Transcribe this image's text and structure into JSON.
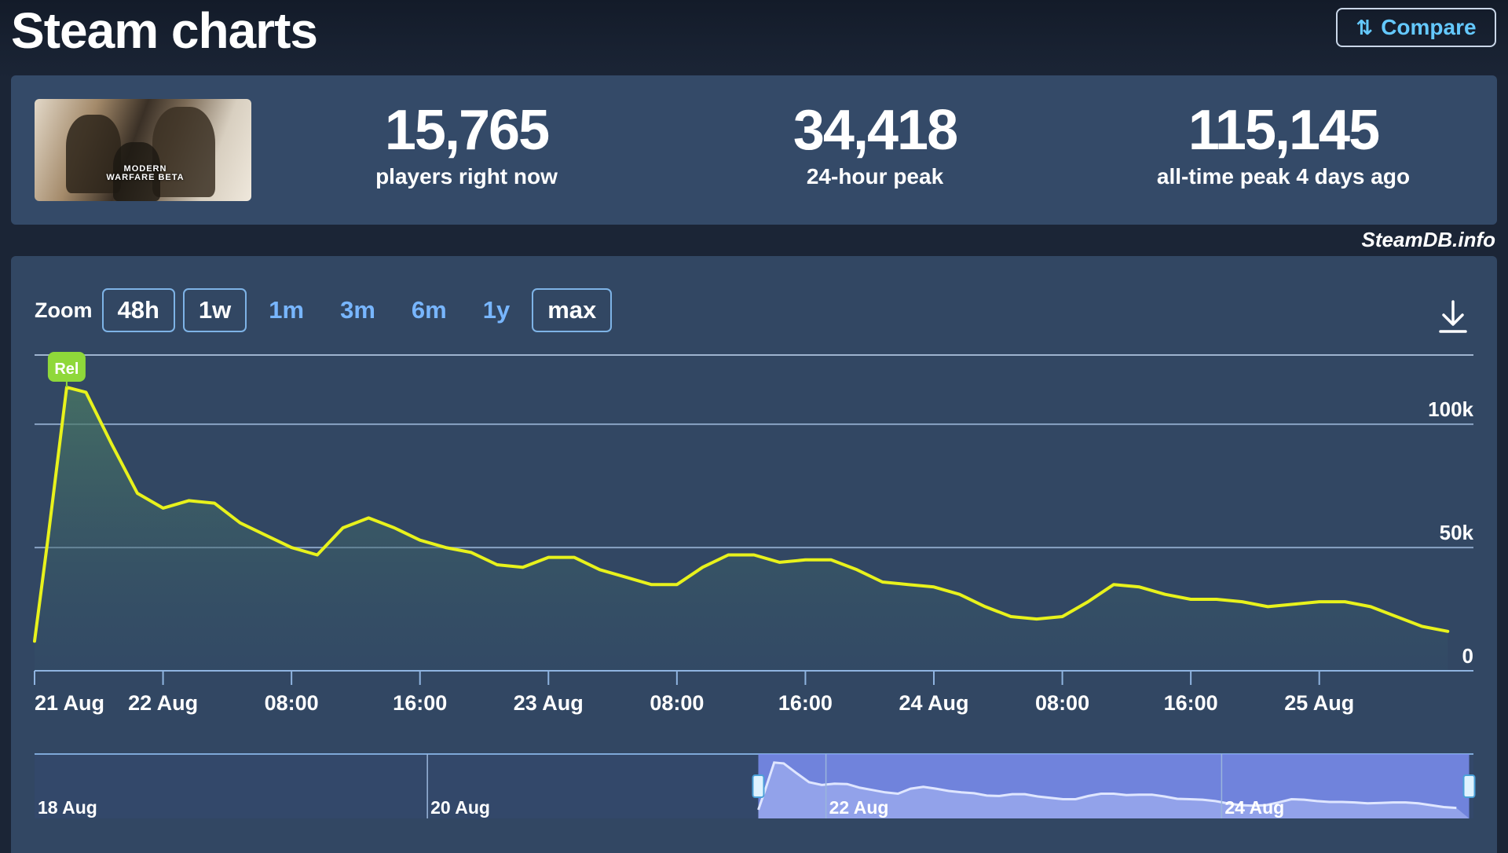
{
  "header": {
    "title": "Steam charts",
    "compare_label": "Compare",
    "compare_icon": "sort-numeric-icon"
  },
  "stats": {
    "thumbnail_logo": "MODERN WARFARE BETA",
    "current": {
      "value": "15,765",
      "label": "players right now"
    },
    "peak24": {
      "value": "34,418",
      "label": "24-hour peak"
    },
    "alltime": {
      "value": "115,145",
      "label": "all-time peak 4 days ago"
    }
  },
  "credit": "SteamDB.info",
  "zoom": {
    "label": "Zoom",
    "options": [
      {
        "label": "48h",
        "active": true
      },
      {
        "label": "1w",
        "active": true
      },
      {
        "label": "1m",
        "active": false
      },
      {
        "label": "3m",
        "active": false
      },
      {
        "label": "6m",
        "active": false
      },
      {
        "label": "1y",
        "active": false
      },
      {
        "label": "max",
        "active": true
      }
    ]
  },
  "colors": {
    "line": "#e8f21c",
    "marker": "#8fd83a",
    "navigator_fill": "#7b8ef0",
    "grid": "#8aa3c4"
  },
  "chart_data": {
    "type": "line",
    "marker_label": "Rel",
    "xlim": [
      0,
      112
    ],
    "ylim": [
      0,
      130000
    ],
    "yticks": [
      {
        "value": 0,
        "label": "0"
      },
      {
        "value": 50000,
        "label": "50k"
      },
      {
        "value": 100000,
        "label": "100k"
      }
    ],
    "xticks": [
      {
        "x": 0,
        "label": "21 Aug"
      },
      {
        "x": 10,
        "label": "22 Aug"
      },
      {
        "x": 20,
        "label": "08:00"
      },
      {
        "x": 30,
        "label": "16:00"
      },
      {
        "x": 40,
        "label": "23 Aug"
      },
      {
        "x": 50,
        "label": "08:00"
      },
      {
        "x": 60,
        "label": "16:00"
      },
      {
        "x": 70,
        "label": "24 Aug"
      },
      {
        "x": 80,
        "label": "08:00"
      },
      {
        "x": 90,
        "label": "16:00"
      },
      {
        "x": 100,
        "label": "25 Aug"
      }
    ],
    "series": [
      {
        "x": [
          0,
          1,
          2.5,
          4,
          6,
          8,
          10,
          12,
          14,
          16,
          18,
          20,
          22,
          24,
          26,
          28,
          30,
          32,
          34,
          36,
          38,
          40,
          42,
          44,
          46,
          48,
          50,
          52,
          54,
          56,
          58,
          60,
          62,
          64,
          66,
          68,
          70,
          72,
          74,
          76,
          78,
          80,
          82,
          84,
          86,
          88,
          90,
          92,
          94,
          96,
          98,
          100,
          102,
          104,
          106,
          108,
          110
        ],
        "y": [
          12000,
          52000,
          115000,
          113000,
          92000,
          72000,
          66000,
          69000,
          68000,
          60000,
          55000,
          50000,
          47000,
          58000,
          62000,
          58000,
          53000,
          50000,
          48000,
          43000,
          42000,
          46000,
          46000,
          41000,
          38000,
          35000,
          35000,
          42000,
          47000,
          47000,
          44000,
          45000,
          45000,
          41000,
          36000,
          35000,
          34000,
          31000,
          26000,
          22000,
          21000,
          22000,
          28000,
          35000,
          34000,
          31000,
          29000,
          29000,
          28000,
          26000,
          27000,
          28000,
          28000,
          26000,
          22000,
          18000,
          16000
        ]
      }
    ],
    "navigator": {
      "xticks": [
        {
          "pos": 0,
          "label": "18 Aug"
        },
        {
          "pos": 0.273,
          "label": "20 Aug"
        },
        {
          "pos": 0.55,
          "label": "22 Aug"
        },
        {
          "pos": 0.825,
          "label": "24 Aug"
        }
      ],
      "selection": [
        0.503,
        0.997
      ]
    }
  }
}
